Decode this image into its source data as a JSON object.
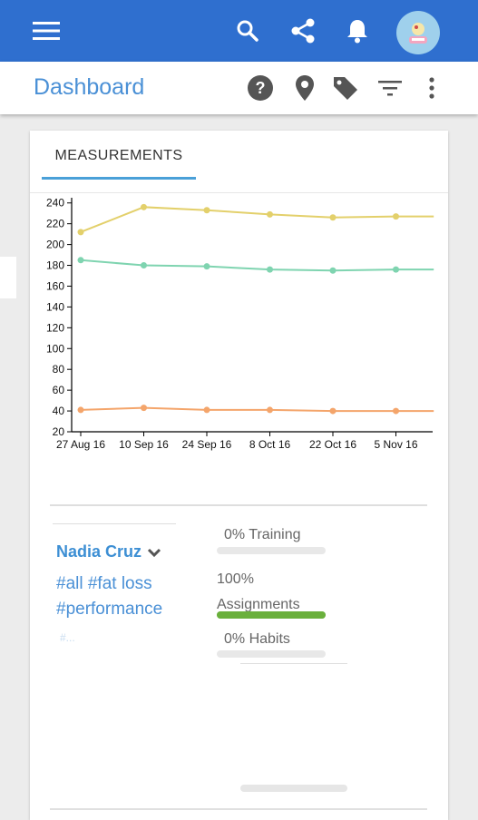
{
  "header": {
    "icons": [
      "menu-icon",
      "search-icon",
      "share-icon",
      "bell-icon"
    ],
    "brand_color": "#2f6fcf"
  },
  "toolbar": {
    "title": "Dashboard",
    "icons": [
      "help-icon",
      "location-pin-icon",
      "tag-icon",
      "filter-icon",
      "more-vert-icon"
    ]
  },
  "measurements": {
    "tab_label": "MEASUREMENTS"
  },
  "chart_data": {
    "type": "line",
    "x": [
      "27 Aug 16",
      "10 Sep 16",
      "24 Sep 16",
      "8 Oct 16",
      "22 Oct 16",
      "5 Nov 16"
    ],
    "yticks": [
      20,
      40,
      60,
      80,
      100,
      120,
      140,
      160,
      180,
      200,
      220,
      240
    ],
    "ylim": [
      20,
      245
    ],
    "grid": false,
    "series": [
      {
        "color": "#e3d06b",
        "points": [
          [
            0,
            212
          ],
          [
            1,
            236
          ],
          [
            2,
            233
          ],
          [
            3,
            229
          ],
          [
            4,
            226
          ],
          [
            5,
            227
          ],
          [
            5.6,
            227
          ]
        ]
      },
      {
        "color": "#7fd4b0",
        "points": [
          [
            0,
            185
          ],
          [
            1,
            180
          ],
          [
            2,
            179
          ],
          [
            3,
            176
          ],
          [
            4,
            175
          ],
          [
            5,
            176
          ],
          [
            5.6,
            176
          ]
        ]
      },
      {
        "color": "#f4a56b",
        "points": [
          [
            0,
            41
          ],
          [
            1,
            43
          ],
          [
            2,
            41
          ],
          [
            3,
            41
          ],
          [
            4,
            40
          ],
          [
            5,
            40
          ],
          [
            5.6,
            40
          ]
        ]
      }
    ]
  },
  "client": {
    "name": "Nadia Cruz",
    "tags": [
      "#all",
      "#fat loss",
      "#performance"
    ],
    "more_tags": "#..."
  },
  "progress": [
    {
      "label": "0% Training",
      "value": 0
    },
    {
      "label": "100% Assignments",
      "value": 100
    },
    {
      "label": "0% Habits",
      "value": 0
    }
  ],
  "colors": {
    "accent": "#4a90d6",
    "progress_fill": "#6ab03c"
  }
}
